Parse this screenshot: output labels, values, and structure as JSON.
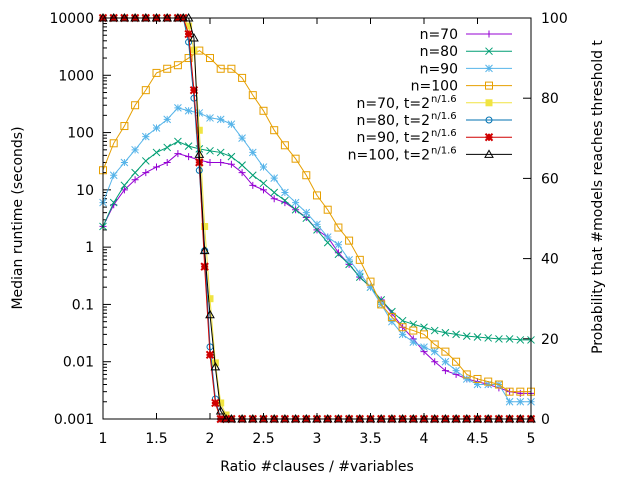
{
  "chart_data": {
    "type": "line",
    "xlabel": "Ratio #clauses / #variables",
    "ylabel_left": "Median runtime (seconds)",
    "ylabel_right": "Probability that #models reaches threshold t",
    "xlim": [
      1,
      5
    ],
    "ylim_left": [
      0.001,
      10000
    ],
    "ylim_right": [
      0,
      100
    ],
    "x_ticks": [
      {
        "v": 1,
        "label": "1"
      },
      {
        "v": 1.5,
        "label": "1.5"
      },
      {
        "v": 2,
        "label": "2"
      },
      {
        "v": 2.5,
        "label": "2.5"
      },
      {
        "v": 3,
        "label": "3"
      },
      {
        "v": 3.5,
        "label": "3.5"
      },
      {
        "v": 4,
        "label": "4"
      },
      {
        "v": 4.5,
        "label": "4.5"
      },
      {
        "v": 5,
        "label": "5"
      }
    ],
    "y_left_ticks": [
      {
        "v": 0.001,
        "label": "0.001"
      },
      {
        "v": 0.01,
        "label": "0.01"
      },
      {
        "v": 0.1,
        "label": "0.1"
      },
      {
        "v": 1,
        "label": "1"
      },
      {
        "v": 10,
        "label": "10"
      },
      {
        "v": 100,
        "label": "100"
      },
      {
        "v": 1000,
        "label": "1000"
      },
      {
        "v": 10000,
        "label": "10000"
      }
    ],
    "y_right_ticks": [
      {
        "v": 0,
        "label": "0"
      },
      {
        "v": 20,
        "label": "20"
      },
      {
        "v": 40,
        "label": "40"
      },
      {
        "v": 60,
        "label": "60"
      },
      {
        "v": 80,
        "label": "80"
      },
      {
        "v": 100,
        "label": "100"
      }
    ],
    "legend_position": "top-right",
    "series": [
      {
        "name": "n=70",
        "axis": "left",
        "color": "#9400d3",
        "marker": "plus",
        "x": [
          1.0,
          1.1,
          1.2,
          1.3,
          1.4,
          1.5,
          1.6,
          1.7,
          1.8,
          1.9,
          2.0,
          2.1,
          2.2,
          2.3,
          2.4,
          2.5,
          2.6,
          2.7,
          2.8,
          2.9,
          3.0,
          3.1,
          3.2,
          3.3,
          3.4,
          3.5,
          3.6,
          3.7,
          3.8,
          3.9,
          4.0,
          4.1,
          4.2,
          4.3,
          4.4,
          4.5,
          4.6,
          4.7,
          4.8,
          4.9,
          5.0
        ],
        "y": [
          2.3,
          5.5,
          10,
          15,
          20,
          25,
          30,
          43,
          38,
          33,
          30,
          30,
          28,
          20,
          12,
          10,
          7,
          6,
          4.5,
          3.3,
          2,
          1.5,
          0.8,
          0.5,
          0.3,
          0.2,
          0.12,
          0.07,
          0.04,
          0.025,
          0.015,
          0.01,
          0.007,
          0.006,
          0.005,
          0.0045,
          0.004,
          0.0035,
          0.003,
          0.0028,
          0.0028
        ]
      },
      {
        "name": "n=80",
        "axis": "left",
        "color": "#009e73",
        "marker": "cross",
        "x": [
          1.0,
          1.1,
          1.2,
          1.3,
          1.4,
          1.5,
          1.6,
          1.7,
          1.8,
          1.9,
          2.0,
          2.1,
          2.2,
          2.3,
          2.4,
          2.5,
          2.6,
          2.7,
          2.8,
          2.9,
          3.0,
          3.1,
          3.2,
          3.3,
          3.4,
          3.5,
          3.6,
          3.7,
          3.8,
          3.9,
          4.0,
          4.1,
          4.2,
          4.3,
          4.4,
          4.5,
          4.6,
          4.7,
          4.8,
          4.9,
          5.0
        ],
        "y": [
          2.3,
          6,
          12,
          20,
          32,
          45,
          55,
          70,
          58,
          52,
          48,
          45,
          38,
          27,
          18,
          13,
          9,
          6.5,
          4.5,
          3.2,
          2,
          1.2,
          0.75,
          0.5,
          0.3,
          0.2,
          0.12,
          0.075,
          0.052,
          0.045,
          0.04,
          0.035,
          0.032,
          0.03,
          0.028,
          0.027,
          0.026,
          0.025,
          0.025,
          0.024,
          0.024
        ]
      },
      {
        "name": "n=90",
        "axis": "left",
        "color": "#56b4e9",
        "marker": "star",
        "x": [
          1.0,
          1.1,
          1.2,
          1.3,
          1.4,
          1.5,
          1.6,
          1.7,
          1.8,
          1.9,
          2.0,
          2.1,
          2.2,
          2.3,
          2.4,
          2.5,
          2.6,
          2.7,
          2.8,
          2.9,
          3.0,
          3.1,
          3.2,
          3.3,
          3.4,
          3.5,
          3.6,
          3.7,
          3.8,
          3.9,
          4.0,
          4.1,
          4.2,
          4.3,
          4.4,
          4.5,
          4.6,
          4.7,
          4.8,
          4.9,
          5.0
        ],
        "y": [
          6,
          18,
          30,
          50,
          85,
          120,
          170,
          270,
          240,
          220,
          180,
          170,
          140,
          80,
          45,
          25,
          16,
          9,
          6,
          4,
          2.5,
          1.5,
          1.1,
          0.6,
          0.35,
          0.2,
          0.1,
          0.05,
          0.03,
          0.022,
          0.018,
          0.015,
          0.01,
          0.007,
          0.005,
          0.004,
          0.004,
          0.004,
          0.002,
          0.002,
          0.002
        ]
      },
      {
        "name": "n=100",
        "axis": "left",
        "color": "#e69f00",
        "marker": "square",
        "x": [
          1.0,
          1.1,
          1.2,
          1.3,
          1.4,
          1.5,
          1.6,
          1.7,
          1.8,
          1.9,
          2.0,
          2.1,
          2.2,
          2.3,
          2.4,
          2.5,
          2.6,
          2.7,
          2.8,
          2.9,
          3.0,
          3.1,
          3.2,
          3.3,
          3.4,
          3.5,
          3.6,
          3.7,
          3.8,
          3.9,
          4.0,
          4.1,
          4.2,
          4.3,
          4.4,
          4.5,
          4.6,
          4.7,
          4.8,
          4.9,
          5.0
        ],
        "y": [
          22,
          65,
          130,
          300,
          550,
          1100,
          1300,
          1500,
          2000,
          2700,
          2000,
          1300,
          1300,
          900,
          450,
          240,
          110,
          60,
          35,
          18,
          8,
          4.5,
          2.2,
          1.3,
          0.6,
          0.25,
          0.1,
          0.06,
          0.04,
          0.035,
          0.03,
          0.02,
          0.015,
          0.01,
          0.006,
          0.005,
          0.0045,
          0.004,
          0.003,
          0.003,
          0.003
        ]
      },
      {
        "name": "n=70, t=2",
        "superscript": "n/1.6",
        "axis": "right",
        "color": "#f0e442",
        "marker": "filled-square",
        "x": [
          1.0,
          1.1,
          1.2,
          1.3,
          1.4,
          1.5,
          1.6,
          1.7,
          1.75,
          1.8,
          1.85,
          1.9,
          1.95,
          2.0,
          2.05,
          2.1,
          2.15,
          2.2,
          2.3,
          2.4,
          2.5,
          2.6,
          2.7,
          2.8,
          2.9,
          3.0,
          3.1,
          3.2,
          3.3,
          3.4,
          3.5,
          3.6,
          3.7,
          3.8,
          3.9,
          4.0,
          4.1,
          4.2,
          4.3,
          4.4,
          4.5,
          4.6,
          4.7,
          4.8,
          4.9,
          5.0
        ],
        "y": [
          100,
          100,
          100,
          100,
          100,
          100,
          100,
          100,
          100,
          98,
          92,
          72,
          48,
          30,
          14,
          4,
          1,
          0,
          0,
          0,
          0,
          0,
          0,
          0,
          0,
          0,
          0,
          0,
          0,
          0,
          0,
          0,
          0,
          0,
          0,
          0,
          0,
          0,
          0,
          0,
          0,
          0,
          0,
          0,
          0,
          0
        ]
      },
      {
        "name": "n=80, t=2",
        "superscript": "n/1.6",
        "axis": "right",
        "color": "#0072b2",
        "marker": "circle",
        "x": [
          1.0,
          1.1,
          1.2,
          1.3,
          1.4,
          1.5,
          1.6,
          1.7,
          1.75,
          1.8,
          1.85,
          1.9,
          1.95,
          2.0,
          2.05,
          2.1,
          2.15,
          2.2,
          2.3,
          2.4,
          2.5,
          2.6,
          2.7,
          2.8,
          2.9,
          3.0,
          3.1,
          3.2,
          3.3,
          3.4,
          3.5,
          3.6,
          3.7,
          3.8,
          3.9,
          4.0,
          4.1,
          4.2,
          4.3,
          4.4,
          4.5,
          4.6,
          4.7,
          4.8,
          4.9,
          5.0
        ],
        "y": [
          100,
          100,
          100,
          100,
          100,
          100,
          100,
          100,
          100,
          94,
          80,
          62,
          42,
          18,
          5,
          0,
          0,
          0,
          0,
          0,
          0,
          0,
          0,
          0,
          0,
          0,
          0,
          0,
          0,
          0,
          0,
          0,
          0,
          0,
          0,
          0,
          0,
          0,
          0,
          0,
          0,
          0,
          0,
          0,
          0,
          0
        ]
      },
      {
        "name": "n=90, t=2",
        "superscript": "n/1.6",
        "axis": "right",
        "color": "#d00000",
        "marker": "filled-star",
        "x": [
          1.0,
          1.1,
          1.2,
          1.3,
          1.4,
          1.5,
          1.6,
          1.7,
          1.75,
          1.8,
          1.85,
          1.9,
          1.95,
          2.0,
          2.05,
          2.1,
          2.15,
          2.2,
          2.3,
          2.4,
          2.5,
          2.6,
          2.7,
          2.8,
          2.9,
          3.0,
          3.1,
          3.2,
          3.3,
          3.4,
          3.5,
          3.6,
          3.7,
          3.8,
          3.9,
          4.0,
          4.1,
          4.2,
          4.3,
          4.4,
          4.5,
          4.6,
          4.7,
          4.8,
          4.9,
          5.0
        ],
        "y": [
          100,
          100,
          100,
          100,
          100,
          100,
          100,
          100,
          100,
          96,
          82,
          64,
          38,
          16,
          4,
          0,
          0,
          0,
          0,
          0,
          0,
          0,
          0,
          0,
          0,
          0,
          0,
          0,
          0,
          0,
          0,
          0,
          0,
          0,
          0,
          0,
          0,
          0,
          0,
          0,
          0,
          0,
          0,
          0,
          0,
          0
        ]
      },
      {
        "name": "n=100, t=2",
        "superscript": "n/1.6",
        "axis": "right",
        "color": "#000000",
        "marker": "triangle",
        "x": [
          1.0,
          1.1,
          1.2,
          1.3,
          1.4,
          1.5,
          1.6,
          1.7,
          1.75,
          1.8,
          1.85,
          1.9,
          1.95,
          2.0,
          2.05,
          2.1,
          2.15,
          2.2,
          2.3,
          2.4,
          2.5,
          2.6,
          2.7,
          2.8,
          2.9,
          3.0,
          3.1,
          3.2,
          3.3,
          3.4,
          3.5,
          3.6,
          3.7,
          3.8,
          3.9,
          4.0,
          4.1,
          4.2,
          4.3,
          4.4,
          4.5,
          4.6,
          4.7,
          4.8,
          4.9,
          5.0
        ],
        "y": [
          100,
          100,
          100,
          100,
          100,
          100,
          100,
          100,
          100,
          100,
          95,
          66,
          42,
          26,
          13,
          2,
          0,
          0,
          0,
          0,
          0,
          0,
          0,
          0,
          0,
          0,
          0,
          0,
          0,
          0,
          0,
          0,
          0,
          0,
          0,
          0,
          0,
          0,
          0,
          0,
          0,
          0,
          0,
          0,
          0,
          0
        ]
      }
    ]
  }
}
